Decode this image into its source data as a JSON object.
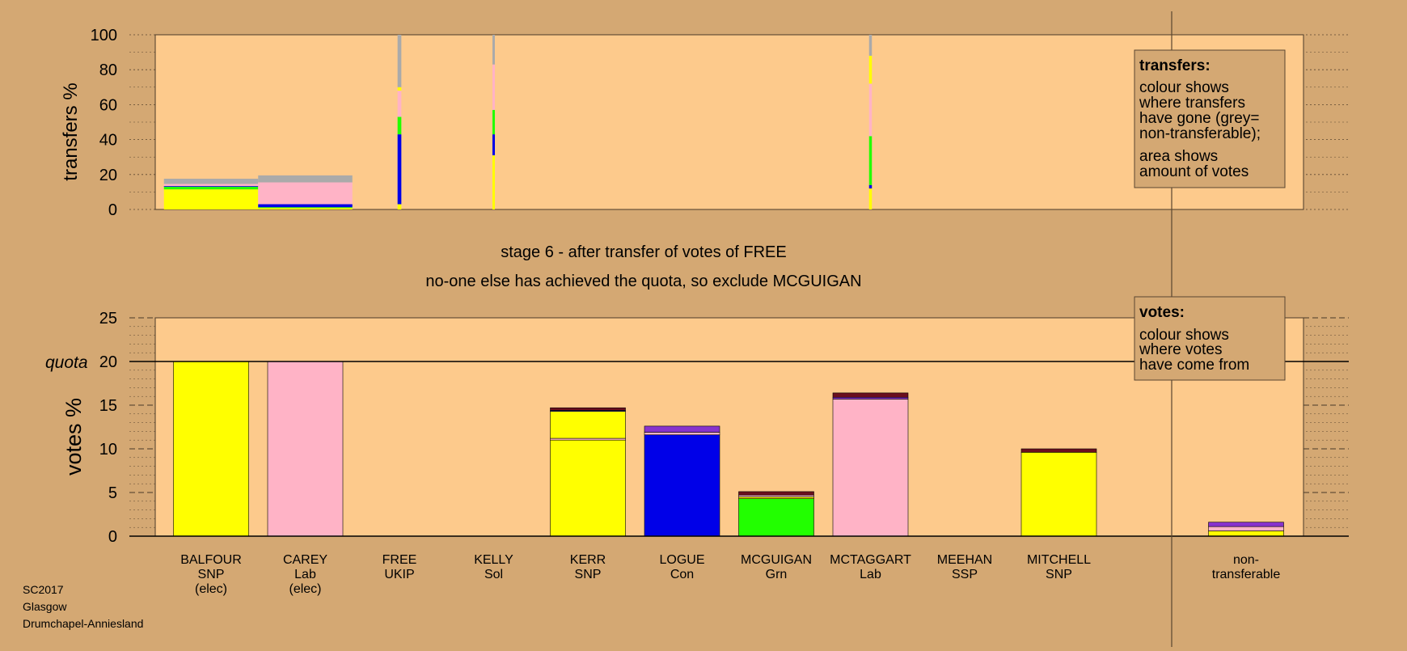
{
  "colors": {
    "background": "#d4a873",
    "plot_bg": "#fdca8c",
    "grey": "#aaaaaa",
    "yellow": "#ffff00",
    "pink": "#ffb3c6",
    "green": "#22ff00",
    "blue": "#0000e8",
    "purple": "#8833cc",
    "maroon": "#6b0f1e",
    "black": "#000000"
  },
  "stage_title": "stage 6 - after transfer of votes of FREE",
  "stage_subtitle": "no-one else has achieved the quota, so exclude MCGUIGAN",
  "footer": {
    "line1": "SC2017",
    "line2": "Glasgow",
    "line3": "Drumchapel-Anniesland"
  },
  "transfers_legend": {
    "title": "transfers:",
    "line1": "colour shows",
    "line2": "where transfers",
    "line3": "have gone (grey=",
    "line4": "non-transferable);",
    "line5": "area shows",
    "line6": "amount of votes"
  },
  "votes_legend": {
    "title": "votes:",
    "line1": "colour shows",
    "line2": "where votes",
    "line3": "have come from"
  },
  "chart_data": [
    {
      "type": "bar",
      "ylabel": "transfers %",
      "ylim": [
        0,
        100
      ],
      "yticks": [
        0,
        20,
        40,
        60,
        80,
        100
      ],
      "grid": true,
      "categories": [
        "BALFOUR",
        "CAREY",
        "FREE",
        "KELLY",
        "KERR",
        "LOGUE",
        "MCGUIGAN",
        "MCTAGGART",
        "MEEHAN",
        "MITCHELL"
      ],
      "stacks": [
        {
          "candidate": "BALFOUR",
          "width_pct": 100,
          "segments": [
            {
              "color": "yellow",
              "value": 11.5
            },
            {
              "color": "green",
              "value": 1.5
            },
            {
              "color": "blue",
              "value": 0.4
            },
            {
              "color": "pink",
              "value": 1.2
            },
            {
              "color": "grey",
              "value": 3.0
            }
          ]
        },
        {
          "candidate": "CAREY",
          "width_pct": 100,
          "segments": [
            {
              "color": "yellow",
              "value": 0.8
            },
            {
              "color": "green",
              "value": 0.5
            },
            {
              "color": "blue",
              "value": 1.7
            },
            {
              "color": "pink",
              "value": 12.5
            },
            {
              "color": "grey",
              "value": 4.0
            }
          ]
        },
        {
          "candidate": "FREE",
          "width_pct": 4,
          "segments": [
            {
              "color": "yellow",
              "value": 3
            },
            {
              "color": "blue",
              "value": 40
            },
            {
              "color": "green",
              "value": 10
            },
            {
              "color": "pink",
              "value": 15
            },
            {
              "color": "yellow",
              "value": 2
            },
            {
              "color": "grey",
              "value": 30
            }
          ]
        },
        {
          "candidate": "KELLY",
          "width_pct": 2,
          "segments": [
            {
              "color": "yellow",
              "value": 31
            },
            {
              "color": "blue",
              "value": 12
            },
            {
              "color": "green",
              "value": 14
            },
            {
              "color": "pink",
              "value": 26
            },
            {
              "color": "grey",
              "value": 17
            }
          ]
        },
        {
          "candidate": "MCTAGGART",
          "width_pct": 3,
          "segments": [
            {
              "color": "yellow",
              "value": 12
            },
            {
              "color": "blue",
              "value": 2
            },
            {
              "color": "green",
              "value": 28
            },
            {
              "color": "pink",
              "value": 30
            },
            {
              "color": "yellow",
              "value": 16
            },
            {
              "color": "grey",
              "value": 12
            }
          ]
        }
      ]
    },
    {
      "type": "bar",
      "ylabel": "votes %",
      "ylim": [
        0,
        25
      ],
      "yticks": [
        0,
        5,
        10,
        15,
        20,
        25
      ],
      "quota": 20,
      "quota_label": "quota",
      "categories": [
        "BALFOUR",
        "CAREY",
        "FREE",
        "KELLY",
        "KERR",
        "LOGUE",
        "MCGUIGAN",
        "MCTAGGART",
        "MEEHAN",
        "MITCHELL",
        "non-transferable"
      ],
      "labels": [
        [
          "BALFOUR",
          "SNP",
          "(elec)"
        ],
        [
          "CAREY",
          "Lab",
          "(elec)"
        ],
        [
          "FREE",
          "UKIP"
        ],
        [
          "KELLY",
          "Sol"
        ],
        [
          "KERR",
          "SNP"
        ],
        [
          "LOGUE",
          "Con"
        ],
        [
          "MCGUIGAN",
          "Grn"
        ],
        [
          "MCTAGGART",
          "Lab"
        ],
        [
          "MEEHAN",
          "SSP"
        ],
        [
          "MITCHELL",
          "SNP"
        ],
        [
          "non-",
          "transferable"
        ]
      ],
      "stacks": [
        [
          {
            "color": "yellow",
            "value": 20.0
          }
        ],
        [
          {
            "color": "pink",
            "value": 20.0
          }
        ],
        [],
        [],
        [
          {
            "color": "yellow",
            "value": 11.0
          },
          {
            "color": "pink",
            "value": 0.2
          },
          {
            "color": "yellow",
            "value": 3.1
          },
          {
            "color": "blue",
            "value": 0.1
          },
          {
            "color": "maroon",
            "value": 0.3
          }
        ],
        [
          {
            "color": "blue",
            "value": 11.6
          },
          {
            "color": "pink",
            "value": 0.3
          },
          {
            "color": "purple",
            "value": 0.7
          }
        ],
        [
          {
            "color": "green",
            "value": 4.3
          },
          {
            "color": "yellow",
            "value": 0.2
          },
          {
            "color": "pink",
            "value": 0.2
          },
          {
            "color": "maroon",
            "value": 0.4
          }
        ],
        [
          {
            "color": "pink",
            "value": 15.7
          },
          {
            "color": "purple",
            "value": 0.2
          },
          {
            "color": "maroon",
            "value": 0.5
          }
        ],
        [],
        [
          {
            "color": "yellow",
            "value": 9.6
          },
          {
            "color": "maroon",
            "value": 0.4
          }
        ],
        [
          {
            "color": "yellow",
            "value": 0.6
          },
          {
            "color": "pink",
            "value": 0.5
          },
          {
            "color": "purple",
            "value": 0.5
          }
        ]
      ]
    }
  ]
}
